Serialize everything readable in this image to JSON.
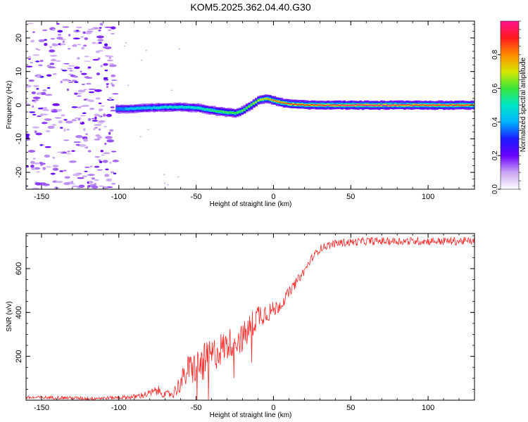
{
  "title": "KOM5.2025.362.04.40.G30",
  "chart_data": [
    {
      "type": "heatmap",
      "xlabel": "Height of straight line (km)",
      "ylabel": "Frequency (Hz)",
      "xlim": [
        -160,
        130
      ],
      "ylim": [
        -25,
        25
      ],
      "xticks": [
        -150,
        -100,
        -50,
        0,
        50,
        100
      ],
      "yticks": [
        -20,
        -10,
        0,
        10,
        20
      ],
      "colorbar": {
        "label": "Normalized spectral amplitude",
        "range": [
          0,
          1
        ],
        "ticks": [
          "0.0",
          "0.2",
          "0.4",
          "0.6",
          "0.8"
        ],
        "colors": [
          "#ffffff",
          "#c9a4f2",
          "#6a00ff",
          "#1c1cff",
          "#00b4ff",
          "#00e6c8",
          "#39e639",
          "#d8e600",
          "#ff8a00",
          "#ff1a1a",
          "#ff1493"
        ]
      },
      "ridge": {
        "x": [
          -102,
          -90,
          -80,
          -70,
          -60,
          -50,
          -40,
          -30,
          -25,
          -20,
          -15,
          -10,
          -5,
          0,
          5,
          10,
          20,
          30,
          50,
          70,
          90,
          110,
          130
        ],
        "freq": [
          -1.2,
          -1.0,
          -0.8,
          -0.6,
          -0.6,
          -0.8,
          -1.6,
          -2.2,
          -2.4,
          -1.5,
          0.0,
          1.5,
          2.0,
          1.3,
          0.7,
          0.3,
          0.1,
          0.0,
          0.0,
          0.0,
          0.0,
          0.0,
          0.0
        ],
        "amplitude": [
          0.4,
          0.45,
          0.45,
          0.5,
          0.5,
          0.5,
          0.55,
          0.6,
          0.6,
          0.6,
          0.65,
          0.7,
          0.75,
          0.85,
          0.85,
          0.9,
          0.9,
          0.95,
          1.0,
          1.0,
          0.95,
          0.95,
          0.9
        ]
      },
      "noise_region_x": [
        -160,
        -102
      ]
    },
    {
      "type": "line",
      "xlabel": "Height of straight line (km)",
      "ylabel": "SNR (v/v)",
      "xlim": [
        -160,
        130
      ],
      "ylim": [
        0,
        760
      ],
      "xticks": [
        -150,
        -100,
        -50,
        0,
        50,
        100
      ],
      "yticks": [
        200,
        400,
        600
      ],
      "series": [
        {
          "color": "#ff2a2a",
          "x": [
            -160,
            -140,
            -120,
            -100,
            -90,
            -80,
            -75,
            -70,
            -65,
            -60,
            -55,
            -50,
            -45,
            -40,
            -35,
            -30,
            -25,
            -20,
            -15,
            -10,
            -5,
            0,
            5,
            10,
            15,
            20,
            25,
            30,
            35,
            40,
            50,
            60,
            80,
            100,
            130
          ],
          "y": [
            12,
            12,
            8,
            12,
            15,
            30,
            45,
            25,
            30,
            80,
            140,
            150,
            170,
            200,
            230,
            250,
            280,
            280,
            330,
            390,
            400,
            410,
            440,
            490,
            540,
            590,
            650,
            690,
            705,
            715,
            720,
            725,
            725,
            725,
            725
          ],
          "noise_amplitude": [
            8,
            8,
            8,
            8,
            12,
            18,
            25,
            15,
            25,
            45,
            70,
            80,
            90,
            80,
            80,
            70,
            70,
            70,
            70,
            60,
            50,
            40,
            30,
            25,
            22,
            20,
            18,
            18,
            18,
            18,
            18,
            18,
            18,
            18,
            18
          ]
        }
      ]
    }
  ]
}
